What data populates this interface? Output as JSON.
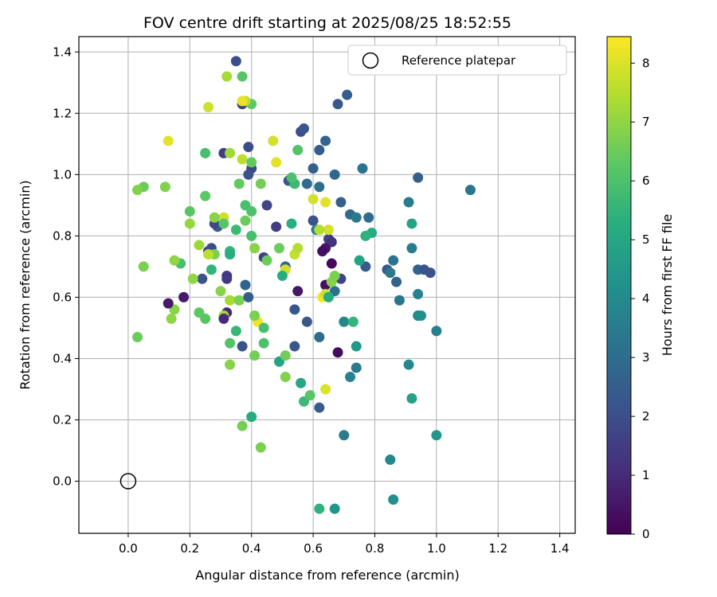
{
  "chart_data": {
    "type": "scatter",
    "title": "FOV centre drift starting at 2025/08/25 18:52:55",
    "xlabel": "Angular distance from reference (arcmin)",
    "ylabel": "Rotation from reference (arcmin)",
    "xlim": [
      -0.16,
      1.45
    ],
    "ylim": [
      -0.17,
      1.45
    ],
    "xticks": [
      "0.0",
      "0.2",
      "0.4",
      "0.6",
      "0.8",
      "1.0",
      "1.2",
      "1.4"
    ],
    "yticks": [
      "0.0",
      "0.2",
      "0.4",
      "0.6",
      "0.8",
      "1.0",
      "1.2",
      "1.4"
    ],
    "grid": true,
    "legend": {
      "placement": "top-right",
      "entries": [
        "Reference platepar"
      ]
    },
    "reference_point": {
      "x": 0.0,
      "y": 0.0
    },
    "colorbar": {
      "label": "Hours from first FF file",
      "range": [
        0,
        8.45
      ],
      "ticks": [
        "0",
        "1",
        "2",
        "3",
        "4",
        "5",
        "6",
        "7",
        "8"
      ],
      "colormap": "viridis"
    },
    "series": [
      {
        "points": [
          [
            0.35,
            1.37,
            2.0
          ],
          [
            0.37,
            1.23,
            1.6
          ],
          [
            0.31,
            1.07,
            1.5
          ],
          [
            0.39,
            1.09,
            1.9
          ],
          [
            0.4,
            1.02,
            1.8
          ],
          [
            0.39,
            1.0,
            2.1
          ],
          [
            0.45,
            0.9,
            1.7
          ],
          [
            0.48,
            0.83,
            1.5
          ],
          [
            0.44,
            0.73,
            1.6
          ],
          [
            0.52,
            0.98,
            2.2
          ],
          [
            0.56,
            1.14,
            2.0
          ],
          [
            0.57,
            1.15,
            2.2
          ],
          [
            0.62,
            1.08,
            2.4
          ],
          [
            0.64,
            1.11,
            2.7
          ],
          [
            0.68,
            1.23,
            2.3
          ],
          [
            0.71,
            1.26,
            2.5
          ],
          [
            0.6,
            1.02,
            2.6
          ],
          [
            0.58,
            0.97,
            2.9
          ],
          [
            0.62,
            0.96,
            3.1
          ],
          [
            0.67,
            1.0,
            2.8
          ],
          [
            0.76,
            1.02,
            3.2
          ],
          [
            0.94,
            0.99,
            2.6
          ],
          [
            1.11,
            0.95,
            3.3
          ],
          [
            0.69,
            0.91,
            2.6
          ],
          [
            0.72,
            0.87,
            2.9
          ],
          [
            0.74,
            0.86,
            3.4
          ],
          [
            0.78,
            0.86,
            3.0
          ],
          [
            0.91,
            0.91,
            3.5
          ],
          [
            0.6,
            0.85,
            2.1
          ],
          [
            0.61,
            0.82,
            3.6
          ],
          [
            0.65,
            0.79,
            1.7
          ],
          [
            0.66,
            0.78,
            1.2
          ],
          [
            0.64,
            0.76,
            0.5
          ],
          [
            0.63,
            0.75,
            0.3
          ],
          [
            0.66,
            0.71,
            0.2
          ],
          [
            0.64,
            0.64,
            0.4
          ],
          [
            0.67,
            0.62,
            3.1
          ],
          [
            0.69,
            0.66,
            1.7
          ],
          [
            0.77,
            0.7,
            2.4
          ],
          [
            0.84,
            0.69,
            2.3
          ],
          [
            0.85,
            0.68,
            3.4
          ],
          [
            0.86,
            0.72,
            3.2
          ],
          [
            0.87,
            0.65,
            2.6
          ],
          [
            0.88,
            0.59,
            3.3
          ],
          [
            0.94,
            0.69,
            2.7
          ],
          [
            0.96,
            0.69,
            2.2
          ],
          [
            0.98,
            0.68,
            2.1
          ],
          [
            0.94,
            0.61,
            3.7
          ],
          [
            1.0,
            0.49,
            3.6
          ],
          [
            0.94,
            0.54,
            3.9
          ],
          [
            0.95,
            0.54,
            4.2
          ],
          [
            0.92,
            0.76,
            3.5
          ],
          [
            0.92,
            0.84,
            4.9
          ],
          [
            0.79,
            0.81,
            5.2
          ],
          [
            0.77,
            0.8,
            5.4
          ],
          [
            0.75,
            0.72,
            4.9
          ],
          [
            0.7,
            0.52,
            3.9
          ],
          [
            0.73,
            0.52,
            5.5
          ],
          [
            0.74,
            0.44,
            4.5
          ],
          [
            0.74,
            0.37,
            3.4
          ],
          [
            0.72,
            0.34,
            3.7
          ],
          [
            0.68,
            0.42,
            0.3
          ],
          [
            0.62,
            0.47,
            3.0
          ],
          [
            0.62,
            0.24,
            2.4
          ],
          [
            0.7,
            0.15,
            3.5
          ],
          [
            0.54,
            0.44,
            2.3
          ],
          [
            0.54,
            0.56,
            2.3
          ],
          [
            0.55,
            0.62,
            0.5
          ],
          [
            0.58,
            0.52,
            2.3
          ],
          [
            0.51,
            0.7,
            2.8
          ],
          [
            0.54,
            0.74,
            7.7
          ],
          [
            0.55,
            0.76,
            7.5
          ],
          [
            0.51,
            0.69,
            7.9
          ],
          [
            0.5,
            0.67,
            5.2
          ],
          [
            0.49,
            0.76,
            6.5
          ],
          [
            0.42,
            0.52,
            8.3
          ],
          [
            0.41,
            0.54,
            6.7
          ],
          [
            0.44,
            0.5,
            5.9
          ],
          [
            0.44,
            0.45,
            6.0
          ],
          [
            0.41,
            0.41,
            6.6
          ],
          [
            0.49,
            0.39,
            4.9
          ],
          [
            0.51,
            0.41,
            6.6
          ],
          [
            0.51,
            0.34,
            6.8
          ],
          [
            0.56,
            0.32,
            5.0
          ],
          [
            0.57,
            0.26,
            5.7
          ],
          [
            0.59,
            0.28,
            6.2
          ],
          [
            0.64,
            0.3,
            8.0
          ],
          [
            0.63,
            0.6,
            8.3
          ],
          [
            0.64,
            0.61,
            7.8
          ],
          [
            0.66,
            0.65,
            6.9
          ],
          [
            0.67,
            0.67,
            6.7
          ],
          [
            0.65,
            0.6,
            5.2
          ],
          [
            0.53,
            0.84,
            5.3
          ],
          [
            0.54,
            0.97,
            5.7
          ],
          [
            0.53,
            0.99,
            6.0
          ],
          [
            0.55,
            1.08,
            6.1
          ],
          [
            0.6,
            0.92,
            7.9
          ],
          [
            0.64,
            0.91,
            8.1
          ],
          [
            0.65,
            0.82,
            7.9
          ],
          [
            0.62,
            0.82,
            7.5
          ],
          [
            0.48,
            1.04,
            8.1
          ],
          [
            0.47,
            1.11,
            7.9
          ],
          [
            0.4,
            1.23,
            6.3
          ],
          [
            0.38,
            1.24,
            7.6
          ],
          [
            0.37,
            1.24,
            8.2
          ],
          [
            0.32,
            1.32,
            7.3
          ],
          [
            0.37,
            1.32,
            6.2
          ],
          [
            0.26,
            1.22,
            7.8
          ],
          [
            0.25,
            1.07,
            5.9
          ],
          [
            0.33,
            1.07,
            7.2
          ],
          [
            0.37,
            1.05,
            7.6
          ],
          [
            0.4,
            1.04,
            6.4
          ],
          [
            0.43,
            0.97,
            6.6
          ],
          [
            0.36,
            0.97,
            6.4
          ],
          [
            0.38,
            0.9,
            5.9
          ],
          [
            0.4,
            0.88,
            6.0
          ],
          [
            0.38,
            0.85,
            6.5
          ],
          [
            0.31,
            0.86,
            7.8
          ],
          [
            0.35,
            0.82,
            5.7
          ],
          [
            0.4,
            0.8,
            5.9
          ],
          [
            0.41,
            0.76,
            6.9
          ],
          [
            0.45,
            0.72,
            6.5
          ],
          [
            0.33,
            0.75,
            5.5
          ],
          [
            0.33,
            0.74,
            5.3
          ],
          [
            0.32,
            0.67,
            1.5
          ],
          [
            0.32,
            0.66,
            1.4
          ],
          [
            0.3,
            0.62,
            6.9
          ],
          [
            0.32,
            0.55,
            1.0
          ],
          [
            0.31,
            0.54,
            7.3
          ],
          [
            0.31,
            0.53,
            1.0
          ],
          [
            0.33,
            0.59,
            7.3
          ],
          [
            0.36,
            0.59,
            6.7
          ],
          [
            0.38,
            0.64,
            2.7
          ],
          [
            0.39,
            0.6,
            2.5
          ],
          [
            0.35,
            0.49,
            5.6
          ],
          [
            0.33,
            0.45,
            6.1
          ],
          [
            0.37,
            0.44,
            2.1
          ],
          [
            0.33,
            0.38,
            6.9
          ],
          [
            0.26,
            0.75,
            1.4
          ],
          [
            0.27,
            0.76,
            2.0
          ],
          [
            0.29,
            0.83,
            2.4
          ],
          [
            0.28,
            0.84,
            1.8
          ],
          [
            0.28,
            0.86,
            6.9
          ],
          [
            0.31,
            0.84,
            6.2
          ],
          [
            0.28,
            0.74,
            6.7
          ],
          [
            0.26,
            0.74,
            7.6
          ],
          [
            0.23,
            0.77,
            7.2
          ],
          [
            0.27,
            0.69,
            5.5
          ],
          [
            0.24,
            0.66,
            2.1
          ],
          [
            0.21,
            0.66,
            7.0
          ],
          [
            0.25,
            0.93,
            6.3
          ],
          [
            0.2,
            0.88,
            6.2
          ],
          [
            0.2,
            0.84,
            7.1
          ],
          [
            0.17,
            0.71,
            5.9
          ],
          [
            0.15,
            0.72,
            7.0
          ],
          [
            0.15,
            0.56,
            6.9
          ],
          [
            0.14,
            0.53,
            7.0
          ],
          [
            0.18,
            0.6,
            0.6
          ],
          [
            0.13,
            0.58,
            0.6
          ],
          [
            0.23,
            0.55,
            6.3
          ],
          [
            0.25,
            0.53,
            6.2
          ],
          [
            0.12,
            0.96,
            6.8
          ],
          [
            0.13,
            1.11,
            8.1
          ],
          [
            0.05,
            0.96,
            6.5
          ],
          [
            0.03,
            0.95,
            6.8
          ],
          [
            0.05,
            0.7,
            6.7
          ],
          [
            0.03,
            0.47,
            6.5
          ],
          [
            0.37,
            0.18,
            6.6
          ],
          [
            0.4,
            0.21,
            5.2
          ],
          [
            0.43,
            0.11,
            6.7
          ],
          [
            0.62,
            -0.09,
            5.4
          ],
          [
            0.67,
            -0.09,
            4.4
          ],
          [
            0.86,
            -0.06,
            4.2
          ],
          [
            0.85,
            0.07,
            3.9
          ],
          [
            0.92,
            0.27,
            4.8
          ],
          [
            0.91,
            0.38,
            4.0
          ],
          [
            1.0,
            0.15,
            4.4
          ]
        ]
      }
    ]
  }
}
